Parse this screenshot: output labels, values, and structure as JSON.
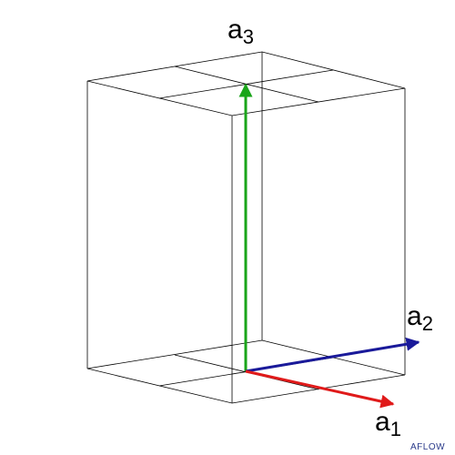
{
  "vectors": [
    {
      "symbol": "a",
      "index": "1"
    },
    {
      "symbol": "a",
      "index": "2"
    },
    {
      "symbol": "a",
      "index": "3"
    }
  ],
  "watermark": "AFLOW"
}
